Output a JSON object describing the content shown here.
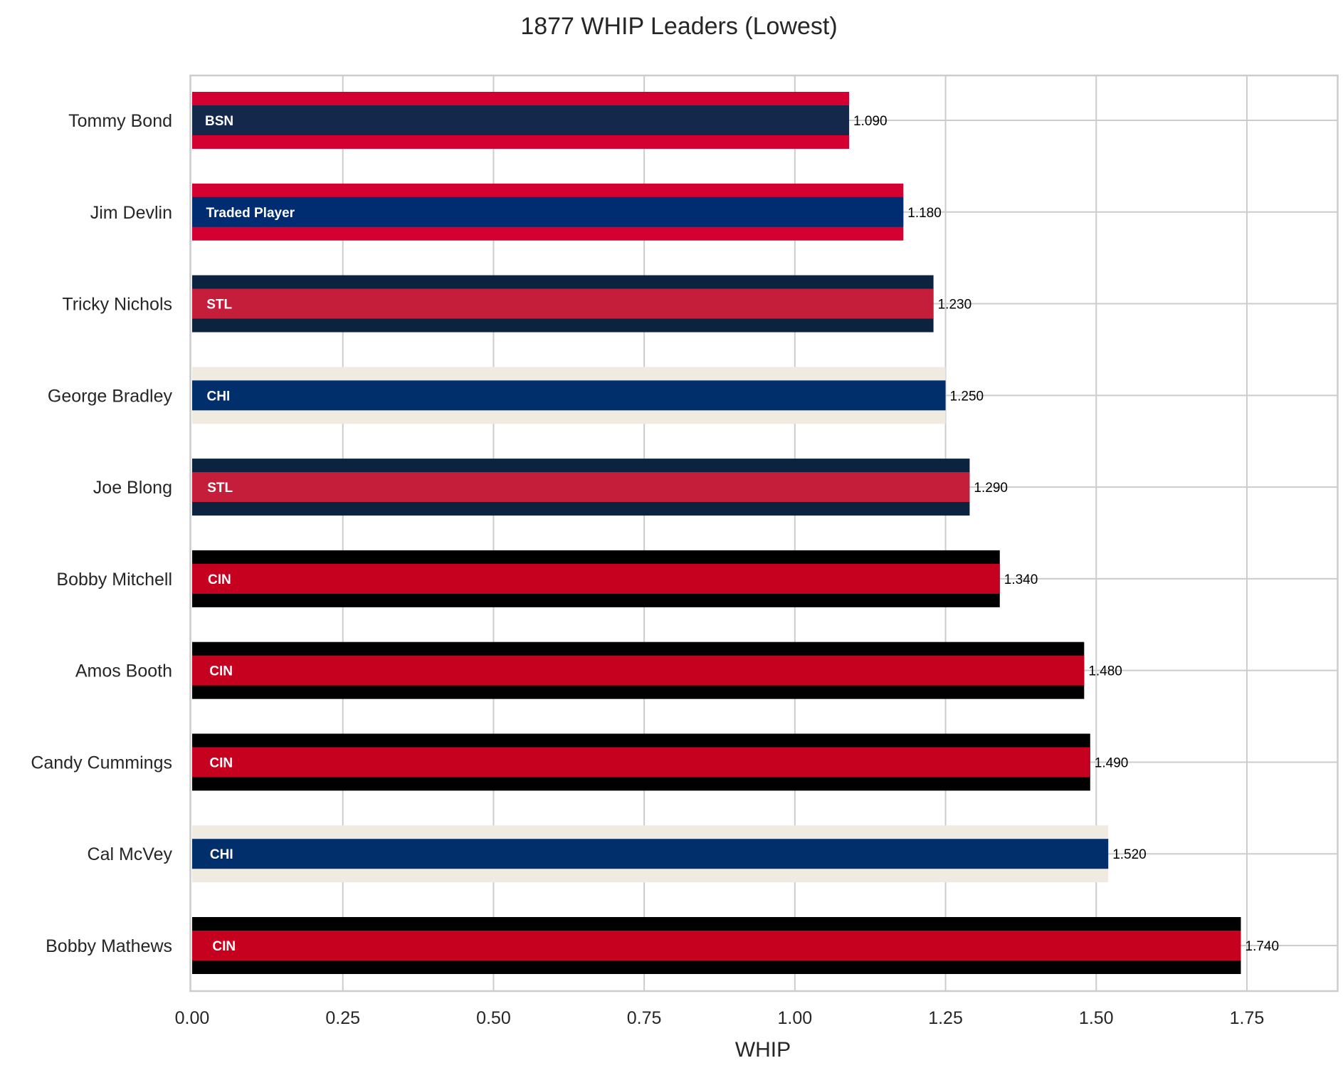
{
  "chart_data": {
    "type": "bar",
    "orientation": "horizontal",
    "title": "1877 WHIP Leaders (Lowest)",
    "xlabel": "WHIP",
    "ylabel": "",
    "xlim": [
      0,
      1.9
    ],
    "xticks": [
      "0.00",
      "0.25",
      "0.50",
      "0.75",
      "1.00",
      "1.25",
      "1.50",
      "1.75"
    ],
    "grid": true,
    "categories": [
      "Tommy Bond",
      "Jim Devlin",
      "Tricky Nichols",
      "George Bradley",
      "Joe Blong",
      "Bobby Mitchell",
      "Amos Booth",
      "Candy Cummings",
      "Cal McVey",
      "Bobby Mathews"
    ],
    "values": [
      1.09,
      1.18,
      1.23,
      1.25,
      1.29,
      1.34,
      1.48,
      1.49,
      1.52,
      1.74
    ],
    "value_labels": [
      "1.090",
      "1.180",
      "1.230",
      "1.250",
      "1.290",
      "1.340",
      "1.480",
      "1.490",
      "1.520",
      "1.740"
    ],
    "team_labels": [
      "BSN",
      "Traded Player",
      "STL",
      "CHI",
      "STL",
      "CIN",
      "CIN",
      "CIN",
      "CHI",
      "CIN"
    ],
    "outer_colors": [
      "#D50032",
      "#D50032",
      "#0C2340",
      "#F0EBE1",
      "#0C2340",
      "#000000",
      "#000000",
      "#000000",
      "#F0EBE1",
      "#000000"
    ],
    "inner_colors": [
      "#14284B",
      "#002D72",
      "#C41E3A",
      "#002F6C",
      "#C41E3A",
      "#C6011F",
      "#C6011F",
      "#C6011F",
      "#002F6C",
      "#C6011F"
    ]
  }
}
